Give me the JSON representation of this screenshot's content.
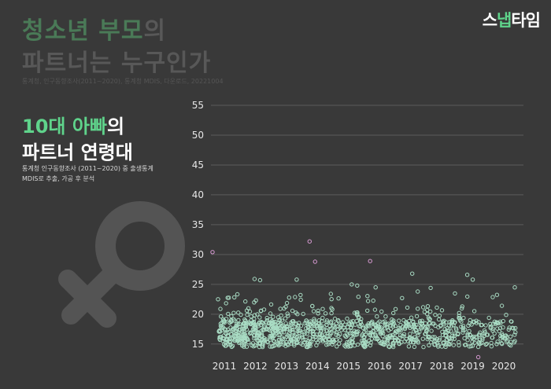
{
  "header": {
    "title_line1_accent": "청소년 부모",
    "title_line1_rest": "의",
    "title_line2": "파트너는 누구인가",
    "source": "통계청, 인구동향조사(2011~2020), 통계청 MDIS, 다운로드, 20221004",
    "logo_part1": "스",
    "logo_part2": "냅",
    "logo_part3": "타임"
  },
  "subtitle": {
    "accent": "10대 아빠",
    "rest": "의",
    "line2": "파트너 연령대"
  },
  "note": {
    "line1": "통계청 인구동향조사 (2011~2020) 중 출생통계",
    "line2": "MDIS로 추출, 가공 후 분석"
  },
  "colors": {
    "background": "#393939",
    "accent_green": "#5fd38b",
    "point_mint": "#a9dcc4",
    "point_outlier": "#d79ad2",
    "female_symbol": "#545454"
  },
  "chart_data": {
    "type": "scatter",
    "x_categories": [
      "2011",
      "2012",
      "2013",
      "2014",
      "2015",
      "2016",
      "2017",
      "2018",
      "2019",
      "2020"
    ],
    "y_ticks": [
      15,
      20,
      25,
      30,
      35,
      40,
      45,
      50,
      55
    ],
    "ylim": [
      13,
      55
    ],
    "grid": "horizontal",
    "points_summary": "dense cluster of partner ages mostly between 15 and 20 for every year, thinning toward 2020",
    "outliers": [
      {
        "x": "2011",
        "y": 30.4
      },
      {
        "x": "2011",
        "y": 22.5
      },
      {
        "x": "2012",
        "y": 25.9
      },
      {
        "x": "2012",
        "y": 25.7
      },
      {
        "x": "2013",
        "y": 25.8
      },
      {
        "x": "2014",
        "y": 32.2
      },
      {
        "x": "2014",
        "y": 28.8
      },
      {
        "x": "2015",
        "y": 25.0
      },
      {
        "x": "2015",
        "y": 24.8
      },
      {
        "x": "2016",
        "y": 28.9
      },
      {
        "x": "2016",
        "y": 24.5
      },
      {
        "x": "2017",
        "y": 26.8
      },
      {
        "x": "2017",
        "y": 23.8
      },
      {
        "x": "2018",
        "y": 24.4
      },
      {
        "x": "2019",
        "y": 26.6
      },
      {
        "x": "2019",
        "y": 25.8
      },
      {
        "x": "2019",
        "y": 12.8
      },
      {
        "x": "2020",
        "y": 24.5
      },
      {
        "x": "2020",
        "y": 15.0
      }
    ]
  }
}
